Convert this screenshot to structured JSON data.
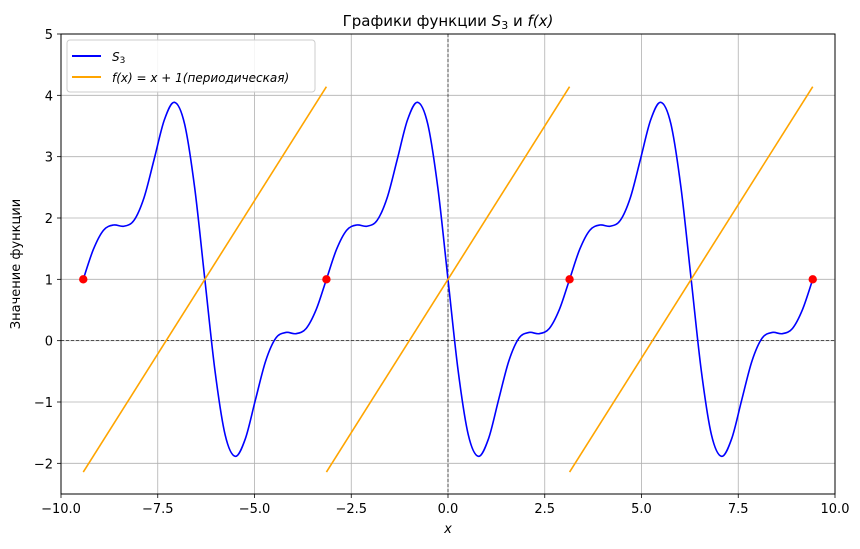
{
  "chart_data": {
    "type": "line",
    "title": "Графики функции S₃ и f(x)",
    "title_parts": {
      "pre": "Графики функции ",
      "s": "S",
      "sub": "3",
      "mid": " и ",
      "fx": "f(x)"
    },
    "xlabel": "x",
    "ylabel": "Значение функции",
    "xlim": [
      -10,
      10
    ],
    "ylim": [
      -2.5,
      5
    ],
    "xticks": [
      -10,
      -7.5,
      -5,
      -2.5,
      0,
      2.5,
      5,
      7.5,
      10
    ],
    "xtick_labels": [
      "−10.0",
      "−7.5",
      "−5.0",
      "−2.5",
      "0.0",
      "2.5",
      "5.0",
      "7.5",
      "10.0"
    ],
    "yticks": [
      -2,
      -1,
      0,
      1,
      2,
      3,
      4,
      5
    ],
    "ytick_labels": [
      "−2",
      "−1",
      "0",
      "1",
      "2",
      "3",
      "4",
      "5"
    ],
    "grid": true,
    "legend_position": "upper left",
    "reference_lines": {
      "x0": 0,
      "y0": 0,
      "style": "dashed",
      "color": "#000000"
    },
    "series": [
      {
        "name": "S3",
        "legend_label": "S",
        "legend_sub": "3",
        "color": "#0000ff",
        "x_start": -9.42478,
        "x_step": 0.261799,
        "period_values": [
          1,
          1.489,
          1.801,
          1.886,
          1.866,
          1.96,
          2.333,
          2.96,
          3.598,
          3.886,
          3.533,
          2.489,
          1,
          -0.489,
          -1.533,
          -1.886,
          -1.598,
          -0.96,
          -0.333,
          0.04,
          0.134,
          0.114,
          0.199,
          0.511
        ],
        "periods": 3
      },
      {
        "name": "f(x) = x + 1 (периодическая)",
        "legend_label": "f(x) = x + 1(периодическая)",
        "color": "#ffa500",
        "segments": [
          {
            "x": [
              -9.42478,
              -3.14159
            ],
            "y": [
              -2.14159,
              4.14159
            ]
          },
          {
            "x": [
              -3.14159,
              3.14159
            ],
            "y": [
              -2.14159,
              4.14159
            ]
          },
          {
            "x": [
              3.14159,
              9.42478
            ],
            "y": [
              -2.14159,
              4.14159
            ]
          }
        ]
      }
    ],
    "scatter": {
      "color": "#ff0000",
      "x": [
        -9.42478,
        -3.14159,
        3.14159,
        9.42478
      ],
      "y": [
        1,
        1,
        1,
        1
      ]
    }
  }
}
